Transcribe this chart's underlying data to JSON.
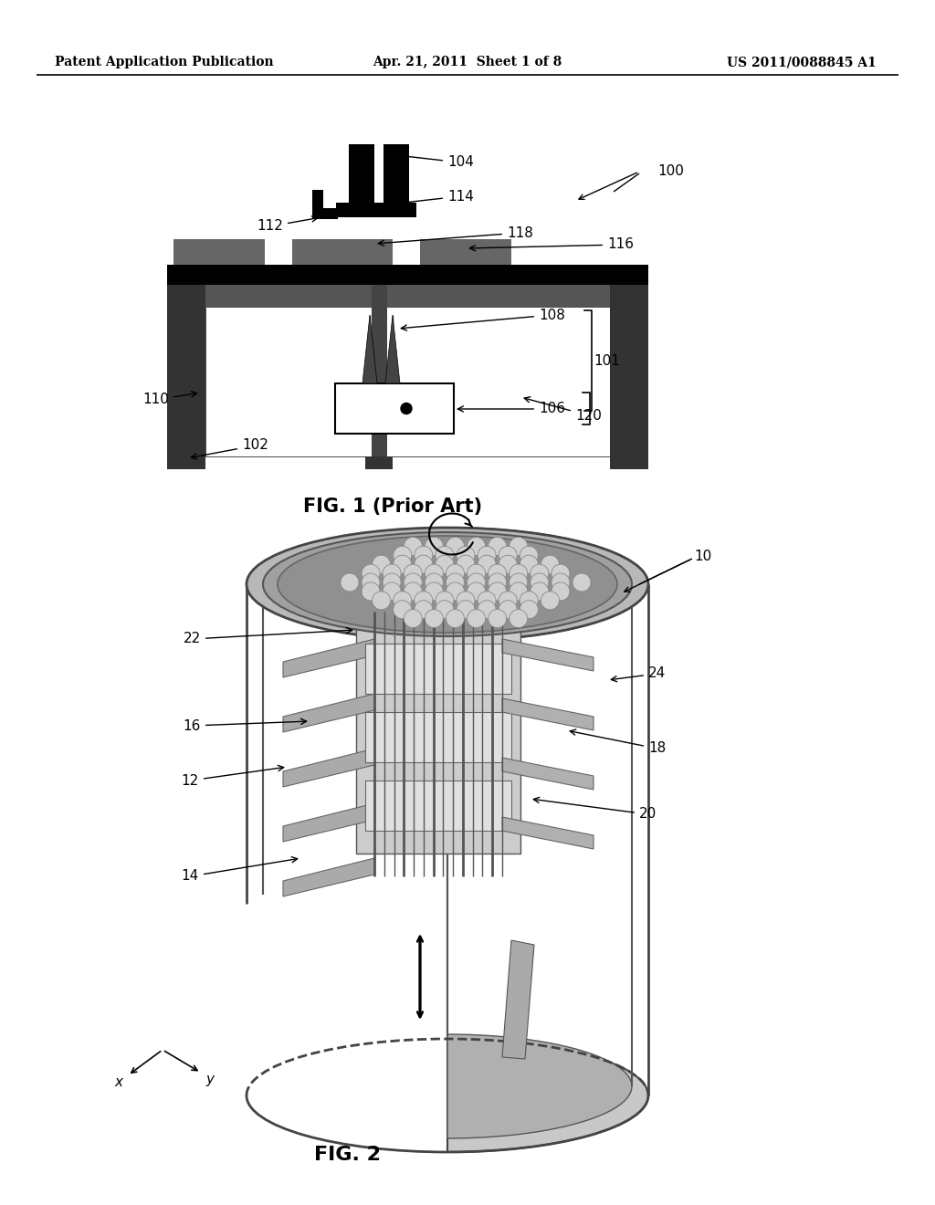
{
  "bg_color": "#ffffff",
  "header_left": "Patent Application Publication",
  "header_center": "Apr. 21, 2011  Sheet 1 of 8",
  "header_right": "US 2011/0088845 A1",
  "fig1_caption": "FIG. 1 (Prior Art)",
  "fig2_caption": "FIG. 2",
  "dark_gray": "#404040",
  "med_gray": "#808080",
  "light_gray": "#c0c0c0",
  "black": "#000000",
  "white": "#ffffff"
}
